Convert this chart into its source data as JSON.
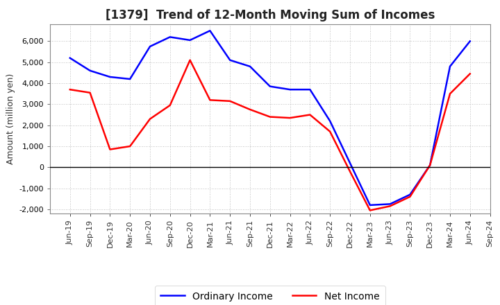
{
  "title": "[1379]  Trend of 12-Month Moving Sum of Incomes",
  "ylabel": "Amount (million yen)",
  "ylim": [
    -2200,
    6800
  ],
  "yticks": [
    -2000,
    -1000,
    0,
    1000,
    2000,
    3000,
    4000,
    5000,
    6000
  ],
  "background_color": "#ffffff",
  "plot_bg_color": "#ffffff",
  "grid_color": "#aaaaaa",
  "x_labels": [
    "Jun-19",
    "Sep-19",
    "Dec-19",
    "Mar-20",
    "Jun-20",
    "Sep-20",
    "Dec-20",
    "Mar-21",
    "Jun-21",
    "Sep-21",
    "Dec-21",
    "Mar-22",
    "Jun-22",
    "Sep-22",
    "Dec-22",
    "Mar-23",
    "Jun-23",
    "Sep-23",
    "Dec-23",
    "Mar-24",
    "Jun-24",
    "Sep-24"
  ],
  "ordinary_income": [
    5200,
    4600,
    4300,
    4200,
    5750,
    6200,
    6050,
    6500,
    5100,
    4800,
    3850,
    3700,
    3700,
    2200,
    200,
    -1800,
    -1750,
    -1300,
    100,
    4800,
    6000,
    null
  ],
  "net_income": [
    3700,
    3550,
    850,
    1000,
    2300,
    2950,
    5100,
    3200,
    3150,
    2750,
    2400,
    2350,
    2500,
    1700,
    -200,
    -2050,
    -1850,
    -1400,
    100,
    3500,
    4450,
    null
  ],
  "ordinary_color": "#0000ff",
  "net_color": "#ff0000",
  "line_width": 1.8,
  "title_fontsize": 12,
  "axis_label_fontsize": 9,
  "tick_fontsize": 8,
  "legend_fontsize": 10
}
